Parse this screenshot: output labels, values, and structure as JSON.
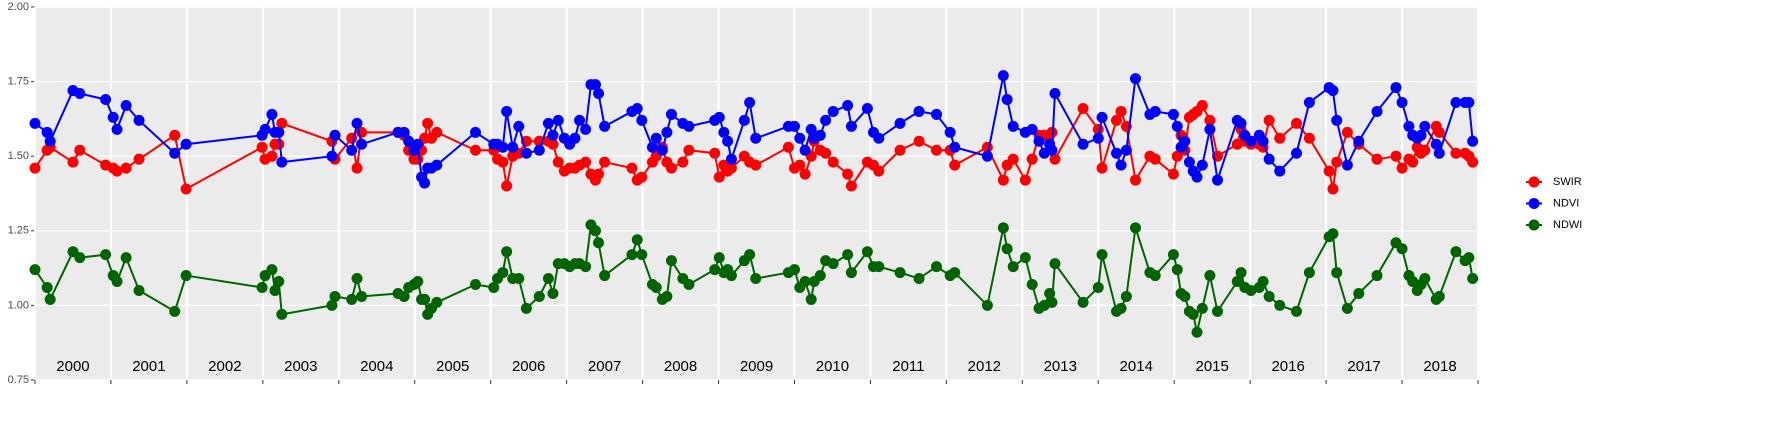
{
  "chart_data": {
    "type": "line",
    "x": [
      2000.0,
      2000.16,
      2000.2,
      2000.5,
      2000.59,
      2000.93,
      2001.03,
      2001.08,
      2001.2,
      2001.37,
      2001.84,
      2001.99,
      2002.99,
      2003.03,
      2003.12,
      2003.16,
      2003.21,
      2003.25,
      2003.91,
      2003.95,
      2004.17,
      2004.24,
      2004.3,
      2004.78,
      2004.86,
      2004.92,
      2004.99,
      2005.04,
      2005.09,
      2005.13,
      2005.17,
      2005.22,
      2005.29,
      2005.8,
      2006.04,
      2006.09,
      2006.16,
      2006.21,
      2006.29,
      2006.37,
      2006.47,
      2006.64,
      2006.76,
      2006.82,
      2006.89,
      2006.97,
      2007.04,
      2007.11,
      2007.17,
      2007.25,
      2007.32,
      2007.38,
      2007.42,
      2007.5,
      2007.86,
      2007.93,
      2007.99,
      2008.13,
      2008.18,
      2008.26,
      2008.32,
      2008.38,
      2008.53,
      2008.61,
      2008.95,
      2009.01,
      2009.07,
      2009.12,
      2009.17,
      2009.34,
      2009.41,
      2009.49,
      2009.92,
      2010.0,
      2010.07,
      2010.14,
      2010.22,
      2010.26,
      2010.34,
      2010.41,
      2010.51,
      2010.7,
      2010.75,
      2010.96,
      2011.04,
      2011.11,
      2011.39,
      2011.64,
      2011.87,
      2012.05,
      2012.11,
      2012.54,
      2012.75,
      2012.8,
      2012.88,
      2013.04,
      2013.13,
      2013.22,
      2013.29,
      2013.36,
      2013.39,
      2013.43,
      2013.8,
      2014.0,
      2014.05,
      2014.24,
      2014.3,
      2014.37,
      2014.49,
      2014.68,
      2014.75,
      2014.99,
      2015.04,
      2015.09,
      2015.14,
      2015.2,
      2015.25,
      2015.3,
      2015.37,
      2015.47,
      2015.57,
      2015.83,
      2015.88,
      2015.93,
      2016.01,
      2016.12,
      2016.17,
      2016.25,
      2016.39,
      2016.61,
      2016.78,
      2017.04,
      2017.09,
      2017.14,
      2017.28,
      2017.43,
      2017.67,
      2017.92,
      2018.0,
      2018.09,
      2018.14,
      2018.2,
      2018.25,
      2018.3,
      2018.45,
      2018.49,
      2018.71,
      2018.83,
      2018.88,
      2018.93
    ],
    "series": [
      {
        "name": "SWIR",
        "color": "#ff0000",
        "values": [
          1.46,
          1.52,
          1.53,
          1.48,
          1.52,
          1.47,
          1.46,
          1.45,
          1.46,
          1.49,
          1.57,
          1.39,
          1.53,
          1.49,
          1.5,
          1.54,
          1.54,
          1.61,
          1.55,
          1.49,
          1.56,
          1.46,
          1.58,
          1.58,
          1.57,
          1.52,
          1.49,
          1.49,
          1.52,
          1.56,
          1.61,
          1.56,
          1.58,
          1.52,
          1.52,
          1.49,
          1.48,
          1.4,
          1.5,
          1.51,
          1.55,
          1.55,
          1.55,
          1.54,
          1.48,
          1.45,
          1.46,
          1.46,
          1.47,
          1.48,
          1.44,
          1.42,
          1.44,
          1.48,
          1.46,
          1.42,
          1.43,
          1.48,
          1.5,
          1.53,
          1.48,
          1.46,
          1.48,
          1.52,
          1.51,
          1.43,
          1.47,
          1.45,
          1.46,
          1.5,
          1.48,
          1.47,
          1.53,
          1.46,
          1.47,
          1.44,
          1.5,
          1.55,
          1.52,
          1.51,
          1.48,
          1.44,
          1.4,
          1.48,
          1.47,
          1.45,
          1.52,
          1.55,
          1.52,
          1.52,
          1.47,
          1.53,
          1.42,
          1.47,
          1.49,
          1.42,
          1.49,
          1.57,
          1.57,
          1.57,
          1.58,
          1.49,
          1.66,
          1.59,
          1.46,
          1.62,
          1.65,
          1.6,
          1.42,
          1.5,
          1.49,
          1.44,
          1.5,
          1.57,
          1.52,
          1.63,
          1.64,
          1.65,
          1.67,
          1.62,
          1.5,
          1.54,
          1.59,
          1.55,
          1.54,
          1.54,
          1.53,
          1.62,
          1.56,
          1.61,
          1.56,
          1.45,
          1.39,
          1.48,
          1.58,
          1.54,
          1.49,
          1.5,
          1.46,
          1.49,
          1.48,
          1.53,
          1.51,
          1.52,
          1.6,
          1.58,
          1.51,
          1.51,
          1.5,
          1.48
        ]
      },
      {
        "name": "NDVI",
        "color": "#0000ff",
        "values": [
          1.61,
          1.58,
          1.55,
          1.72,
          1.71,
          1.69,
          1.63,
          1.59,
          1.67,
          1.62,
          1.51,
          1.54,
          1.57,
          1.59,
          1.64,
          1.58,
          1.58,
          1.48,
          1.5,
          1.57,
          1.52,
          1.61,
          1.54,
          1.58,
          1.58,
          1.55,
          1.52,
          1.54,
          1.43,
          1.41,
          1.46,
          1.46,
          1.47,
          1.58,
          1.54,
          1.54,
          1.53,
          1.65,
          1.53,
          1.6,
          1.51,
          1.52,
          1.61,
          1.57,
          1.62,
          1.56,
          1.54,
          1.56,
          1.62,
          1.59,
          1.74,
          1.74,
          1.71,
          1.6,
          1.65,
          1.66,
          1.62,
          1.53,
          1.56,
          1.52,
          1.58,
          1.64,
          1.61,
          1.6,
          1.62,
          1.63,
          1.58,
          1.55,
          1.49,
          1.62,
          1.68,
          1.56,
          1.6,
          1.6,
          1.56,
          1.52,
          1.59,
          1.56,
          1.57,
          1.62,
          1.65,
          1.67,
          1.6,
          1.66,
          1.58,
          1.56,
          1.61,
          1.65,
          1.64,
          1.58,
          1.53,
          1.5,
          1.77,
          1.69,
          1.6,
          1.58,
          1.59,
          1.55,
          1.51,
          1.54,
          1.52,
          1.71,
          1.54,
          1.56,
          1.63,
          1.51,
          1.47,
          1.52,
          1.76,
          1.64,
          1.65,
          1.64,
          1.6,
          1.53,
          1.55,
          1.48,
          1.45,
          1.43,
          1.47,
          1.59,
          1.42,
          1.62,
          1.61,
          1.57,
          1.55,
          1.57,
          1.55,
          1.49,
          1.45,
          1.51,
          1.68,
          1.73,
          1.72,
          1.62,
          1.47,
          1.55,
          1.65,
          1.73,
          1.68,
          1.6,
          1.57,
          1.56,
          1.57,
          1.6,
          1.54,
          1.51,
          1.68,
          1.68,
          1.68,
          1.55
        ]
      },
      {
        "name": "NDWI",
        "color": "#006400",
        "values": [
          1.12,
          1.06,
          1.02,
          1.18,
          1.16,
          1.17,
          1.1,
          1.08,
          1.16,
          1.05,
          0.98,
          1.1,
          1.06,
          1.1,
          1.12,
          1.05,
          1.08,
          0.97,
          1.0,
          1.03,
          1.02,
          1.09,
          1.03,
          1.04,
          1.03,
          1.06,
          1.07,
          1.08,
          1.02,
          1.02,
          0.97,
          0.99,
          1.01,
          1.07,
          1.06,
          1.09,
          1.11,
          1.18,
          1.09,
          1.09,
          0.99,
          1.03,
          1.09,
          1.04,
          1.14,
          1.14,
          1.13,
          1.14,
          1.14,
          1.13,
          1.27,
          1.25,
          1.21,
          1.1,
          1.17,
          1.22,
          1.17,
          1.07,
          1.06,
          1.02,
          1.03,
          1.15,
          1.09,
          1.07,
          1.12,
          1.16,
          1.11,
          1.12,
          1.1,
          1.15,
          1.17,
          1.09,
          1.11,
          1.12,
          1.06,
          1.08,
          1.02,
          1.08,
          1.1,
          1.15,
          1.14,
          1.17,
          1.11,
          1.18,
          1.13,
          1.13,
          1.11,
          1.09,
          1.13,
          1.1,
          1.11,
          1.0,
          1.26,
          1.19,
          1.13,
          1.16,
          1.07,
          0.99,
          1.0,
          1.04,
          1.01,
          1.14,
          1.01,
          1.06,
          1.17,
          0.98,
          0.99,
          1.03,
          1.26,
          1.11,
          1.1,
          1.17,
          1.12,
          1.04,
          1.03,
          0.98,
          0.97,
          0.91,
          0.99,
          1.1,
          0.98,
          1.08,
          1.11,
          1.06,
          1.05,
          1.06,
          1.08,
          1.03,
          1.0,
          0.98,
          1.11,
          1.23,
          1.24,
          1.11,
          0.99,
          1.04,
          1.1,
          1.21,
          1.19,
          1.1,
          1.08,
          1.05,
          1.07,
          1.09,
          1.02,
          1.03,
          1.18,
          1.15,
          1.16,
          1.09
        ]
      }
    ],
    "xlim": [
      2000,
      2019
    ],
    "xticks": [
      2000,
      2001,
      2002,
      2003,
      2004,
      2005,
      2006,
      2007,
      2008,
      2009,
      2010,
      2011,
      2012,
      2013,
      2014,
      2015,
      2016,
      2017,
      2018,
      2019
    ],
    "year_labels": [
      {
        "value": 2000.5,
        "label": "2000"
      },
      {
        "value": 2001.5,
        "label": "2001"
      },
      {
        "value": 2002.5,
        "label": "2002"
      },
      {
        "value": 2003.5,
        "label": "2003"
      },
      {
        "value": 2004.5,
        "label": "2004"
      },
      {
        "value": 2005.5,
        "label": "2005"
      },
      {
        "value": 2006.5,
        "label": "2006"
      },
      {
        "value": 2007.5,
        "label": "2007"
      },
      {
        "value": 2008.5,
        "label": "2008"
      },
      {
        "value": 2009.5,
        "label": "2009"
      },
      {
        "value": 2010.5,
        "label": "2010"
      },
      {
        "value": 2011.5,
        "label": "2011"
      },
      {
        "value": 2012.5,
        "label": "2012"
      },
      {
        "value": 2013.5,
        "label": "2013"
      },
      {
        "value": 2014.5,
        "label": "2014"
      },
      {
        "value": 2015.5,
        "label": "2015"
      },
      {
        "value": 2016.5,
        "label": "2016"
      },
      {
        "value": 2017.5,
        "label": "2017"
      },
      {
        "value": 2018.5,
        "label": "2018"
      }
    ],
    "ylim": [
      0.75,
      2.0
    ],
    "yticks": [
      {
        "value": 0.75,
        "label": "0.75"
      },
      {
        "value": 1.0,
        "label": "1.00"
      },
      {
        "value": 1.25,
        "label": "1.25"
      },
      {
        "value": 1.5,
        "label": "1.50"
      },
      {
        "value": 1.75,
        "label": "1.75"
      },
      {
        "value": 2.0,
        "label": "2.00"
      }
    ],
    "grid": true,
    "legend": "right"
  }
}
